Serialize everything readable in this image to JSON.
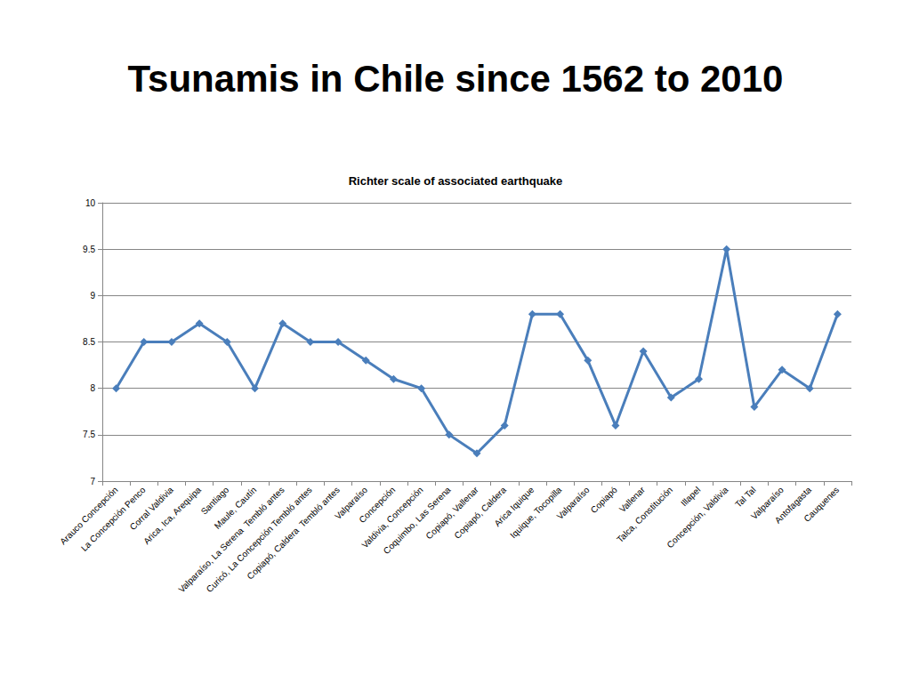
{
  "chart_data": {
    "type": "line",
    "title": "Tsunamis in Chile since 1562 to 2010",
    "subtitle": "Richter scale of associated earthquake",
    "categories": [
      "Arauco Concepción",
      "La Concepción Penco",
      "Corral Valdivia",
      "Arica, Ica, Arequipa",
      "Santiago",
      "Maule, Cautín",
      "Valparaíso, La Serena  Tembló antes",
      "Curicó, La Concepción Tembló antes",
      "Copiapó, Caldera  Tembló antes",
      "Valparaíso",
      "Concepción",
      "Valdivia, Concepción",
      "Coquimbo, Las Serena",
      "Copiapó, Vallenar",
      "Copiapó, Caldera",
      "Arica Iquique",
      "Iquique, Tocopilla",
      "Valparaíso",
      "Copiapó",
      "Vallenar",
      "Talca, Constitución",
      "Illapel",
      "Concepción, Valdivia",
      "Tal Tal",
      "Valparaíso",
      "Antofagasta",
      "Cauquenes"
    ],
    "values": [
      8,
      8.5,
      8.5,
      8.7,
      8.5,
      8,
      8.7,
      8.5,
      8.5,
      8.3,
      8.1,
      8,
      7.5,
      7.3,
      7.6,
      8.8,
      8.8,
      8.3,
      7.6,
      8.4,
      7.9,
      8.1,
      9.5,
      7.8,
      8.2,
      8,
      8.8
    ],
    "color": "#4a7ebb",
    "marker": "diamond",
    "line_style": "solid",
    "ylim": [
      7,
      10
    ],
    "yticks": [
      7,
      7.5,
      8,
      8.5,
      9,
      9.5,
      10
    ],
    "grid": true
  }
}
